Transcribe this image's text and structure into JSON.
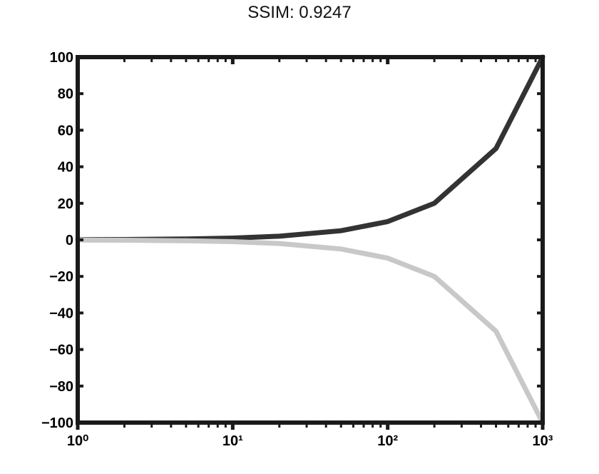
{
  "chart_data": {
    "type": "line",
    "title": "SSIM: 0.9247",
    "xlabel": "",
    "ylabel": "",
    "x_scale": "log",
    "xlim": [
      1,
      1000
    ],
    "ylim": [
      -100,
      100
    ],
    "x_ticks": [
      1,
      10,
      100,
      1000
    ],
    "x_tick_labels": [
      "10⁰",
      "10¹",
      "10²",
      "10³"
    ],
    "y_ticks": [
      -100,
      -80,
      -60,
      -40,
      -20,
      0,
      20,
      40,
      60,
      80,
      100
    ],
    "y_tick_labels": [
      "−100",
      "−80",
      "−60",
      "−40",
      "−20",
      "0",
      "20",
      "40",
      "60",
      "80",
      "100"
    ],
    "grid": false,
    "legend": "none",
    "series": [
      {
        "color": "#333333",
        "x": [
          1,
          2,
          5,
          10,
          20,
          50,
          100,
          200,
          500,
          1000
        ],
        "values": [
          0.1,
          0.2,
          0.5,
          1,
          2,
          5,
          10,
          20,
          50,
          100
        ]
      },
      {
        "color": "#c8c8c8",
        "x": [
          1,
          2,
          5,
          10,
          20,
          50,
          100,
          200,
          500,
          1000
        ],
        "values": [
          -0.1,
          -0.2,
          -0.5,
          -1,
          -2,
          -5,
          -10,
          -20,
          -50,
          -100
        ]
      }
    ]
  }
}
